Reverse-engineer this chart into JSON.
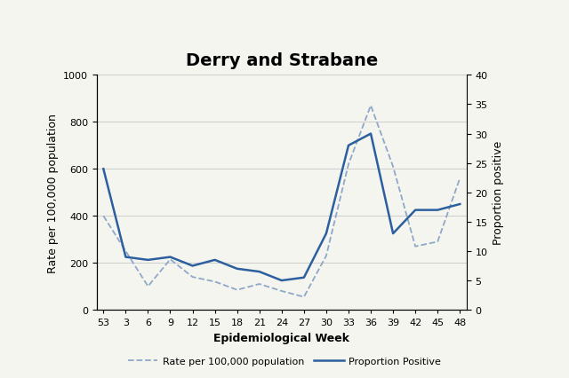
{
  "title": "Derry and Strabane",
  "xlabel": "Epidemiological Week",
  "ylabel_left": "Rate per 100,000 population",
  "ylabel_right": "Proportion positive",
  "x_ticks": [
    53,
    3,
    6,
    9,
    12,
    15,
    18,
    21,
    24,
    27,
    30,
    33,
    36,
    39,
    42,
    45,
    48
  ],
  "x_numeric": [
    0,
    1,
    2,
    3,
    4,
    5,
    6,
    7,
    8,
    9,
    10,
    11,
    12,
    13,
    14,
    15,
    16
  ],
  "ylim_left": [
    0,
    1000
  ],
  "ylim_right": [
    0,
    40
  ],
  "yticks_left": [
    0,
    200,
    400,
    600,
    800,
    1000
  ],
  "yticks_right": [
    0,
    5,
    10,
    15,
    20,
    25,
    30,
    35,
    40
  ],
  "rate_values": [
    400,
    250,
    100,
    215,
    140,
    120,
    85,
    110,
    80,
    55,
    230,
    620,
    870,
    610,
    270,
    290,
    560
  ],
  "proportion_values": [
    24,
    9,
    8.5,
    9,
    7.5,
    8.5,
    7,
    6.5,
    5,
    5.5,
    13,
    28,
    30,
    13,
    17,
    17,
    18
  ],
  "rate_color": "#8ea8c8",
  "proportion_color": "#2c5f9e",
  "rate_linestyle": "--",
  "proportion_linestyle": "-",
  "rate_linewidth": 1.3,
  "proportion_linewidth": 1.8,
  "background_color": "#f5f5f0",
  "legend_rate_label": "Rate per 100,000 population",
  "legend_proportion_label": "Proportion Positive",
  "grid_color": "#cccccc",
  "title_fontsize": 14,
  "axis_label_fontsize": 9,
  "tick_fontsize": 8
}
